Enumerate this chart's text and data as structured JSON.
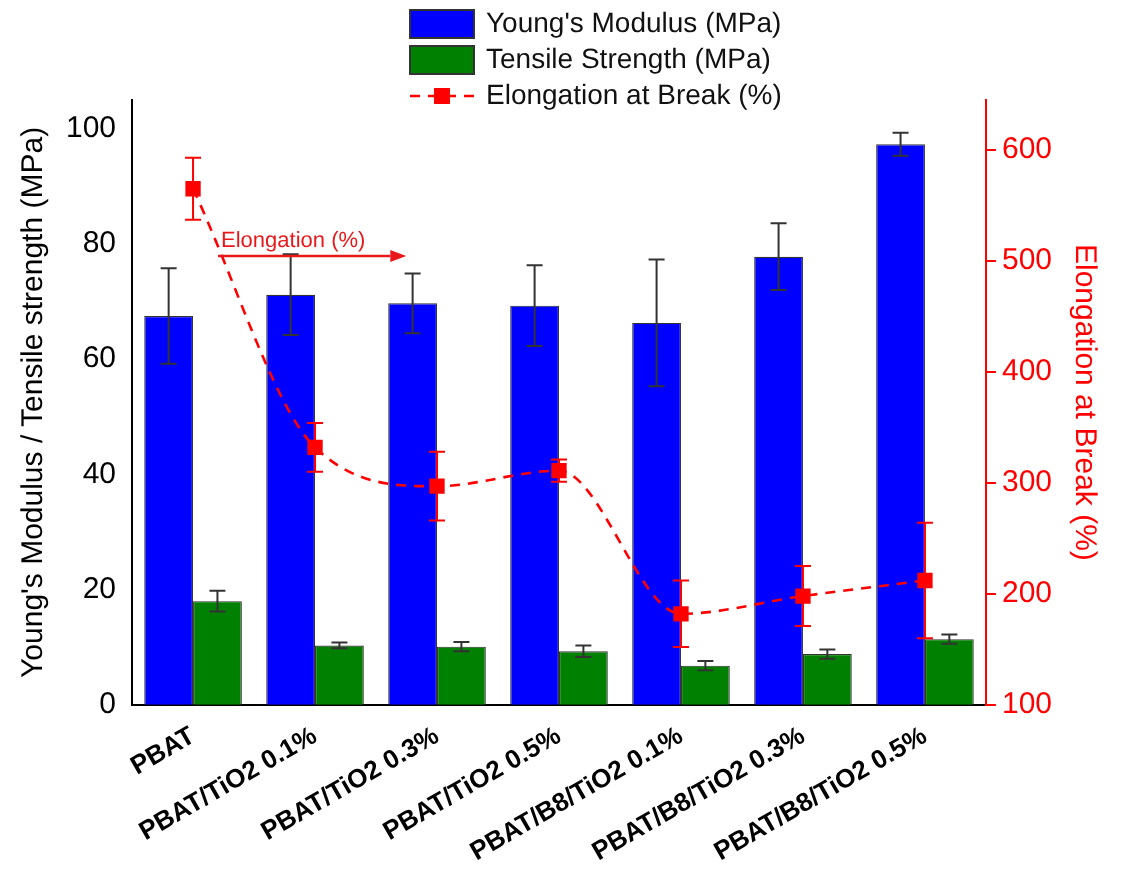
{
  "chart_data": {
    "type": "bar",
    "categories": [
      "PBAT",
      "PBAT/TiO2 0.1%",
      "PBAT/TiO2 0.3%",
      "PBAT/TiO2 0.5%",
      "PBAT/B8/TiO2 0.1%",
      "PBAT/B8/TiO2 0.3%",
      "PBAT/B8/TiO2 0.5%"
    ],
    "ylabel": "Young's Modulus / Tensile strength (MPa)",
    "y2label": "Elongation at Break (%)",
    "ylim": [
      0,
      105
    ],
    "yticks": [
      0,
      20,
      40,
      60,
      80,
      100
    ],
    "y2lim": [
      100,
      645
    ],
    "y2ticks": [
      100,
      200,
      300,
      400,
      500,
      600
    ],
    "legend": "top",
    "grid": false,
    "annotations": [
      "Elongation (%)"
    ],
    "series": [
      {
        "name": "Young's Modulus (MPa)",
        "color": "#0000ff",
        "values": [
          67.5,
          71.2,
          69.7,
          69.3,
          66.3,
          77.8,
          97.3
        ],
        "errors": [
          8.3,
          7,
          5.2,
          7,
          11,
          5.8,
          2
        ]
      },
      {
        "name": "Tensile Strength (MPa)",
        "color": "#008000",
        "values": [
          18,
          10.3,
          10.1,
          9.3,
          6.8,
          8.8,
          11.4
        ],
        "errors": [
          1.8,
          0.5,
          0.8,
          1,
          0.8,
          0.8,
          0.8
        ]
      },
      {
        "name": "Elongation at Break (%)",
        "type": "line",
        "axis": "y2",
        "color": "#ff0000",
        "marker": "square",
        "line_style": "dashed",
        "values": [
          565,
          332,
          297,
          311,
          182,
          198,
          212
        ],
        "errors": [
          28,
          22,
          31,
          10,
          30,
          27,
          52
        ]
      }
    ]
  }
}
